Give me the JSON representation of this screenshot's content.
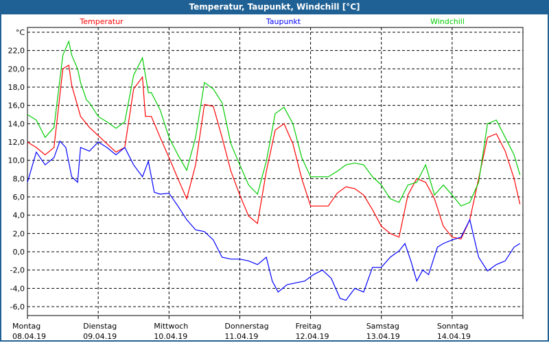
{
  "title": "Temperatur, Taupunkt, Windchill [°C]",
  "chart_data": {
    "type": "line",
    "title": "Temperatur, Taupunkt, Windchill [°C]",
    "ylabel": "°C",
    "xlabel": "",
    "x_unit": "hours since 08.04.19 00:00",
    "xlim": [
      0,
      168
    ],
    "ylim": [
      -7,
      24.5
    ],
    "grid": true,
    "legend_placement": "top",
    "yticks": [
      -6,
      -4,
      -2,
      0,
      2,
      4,
      6,
      8,
      10,
      12,
      14,
      16,
      18,
      20,
      22
    ],
    "ytick_labels": [
      "-6,0",
      "-4,0",
      "-2,0",
      "0,0",
      "2,0",
      "4,0",
      "6,0",
      "8,0",
      "10,0",
      "12,0",
      "14,0",
      "16,0",
      "18,0",
      "20,0",
      "22,0"
    ],
    "xticks": [
      {
        "h": 0,
        "day": "Montag",
        "date": "08.04.19"
      },
      {
        "h": 24,
        "day": "Dienstag",
        "date": "09.04.19"
      },
      {
        "h": 48,
        "day": "Mittwoch",
        "date": "10.04.19"
      },
      {
        "h": 72,
        "day": "Donnerstag",
        "date": "11.04.19"
      },
      {
        "h": 96,
        "day": "Freitag",
        "date": "12.04.19"
      },
      {
        "h": 120,
        "day": "Samstag",
        "date": "13.04.19"
      },
      {
        "h": 144,
        "day": "Sonntag",
        "date": "14.04.19"
      }
    ],
    "series": [
      {
        "name": "Temperatur",
        "color": "#ff0000",
        "points": [
          [
            0,
            12.0
          ],
          [
            3,
            11.4
          ],
          [
            6,
            10.6
          ],
          [
            9,
            11.4
          ],
          [
            12,
            20.0
          ],
          [
            14,
            20.4
          ],
          [
            15,
            18.2
          ],
          [
            18,
            14.8
          ],
          [
            21,
            13.6
          ],
          [
            24,
            12.7
          ],
          [
            27,
            11.8
          ],
          [
            30,
            10.9
          ],
          [
            33,
            11.4
          ],
          [
            36,
            17.8
          ],
          [
            39,
            19.1
          ],
          [
            40,
            14.8
          ],
          [
            42,
            14.8
          ],
          [
            45,
            12.5
          ],
          [
            48,
            10.3
          ],
          [
            51,
            8.0
          ],
          [
            54,
            5.8
          ],
          [
            57,
            9.5
          ],
          [
            60,
            16.1
          ],
          [
            63,
            15.9
          ],
          [
            66,
            12.5
          ],
          [
            69,
            8.8
          ],
          [
            72,
            6.2
          ],
          [
            75,
            3.9
          ],
          [
            78,
            3.1
          ],
          [
            81,
            8.8
          ],
          [
            84,
            13.3
          ],
          [
            87,
            14.0
          ],
          [
            90,
            11.8
          ],
          [
            93,
            8.0
          ],
          [
            96,
            5.0
          ],
          [
            99,
            5.0
          ],
          [
            102,
            5.0
          ],
          [
            105,
            6.4
          ],
          [
            108,
            7.1
          ],
          [
            111,
            6.9
          ],
          [
            114,
            6.2
          ],
          [
            117,
            4.6
          ],
          [
            120,
            2.8
          ],
          [
            123,
            2.0
          ],
          [
            126,
            1.6
          ],
          [
            129,
            6.2
          ],
          [
            132,
            8.0
          ],
          [
            135,
            7.6
          ],
          [
            138,
            5.8
          ],
          [
            141,
            2.8
          ],
          [
            144,
            1.6
          ],
          [
            147,
            1.4
          ],
          [
            150,
            3.5
          ],
          [
            153,
            8.0
          ],
          [
            156,
            12.5
          ],
          [
            159,
            12.9
          ],
          [
            162,
            11.0
          ],
          [
            165,
            8.0
          ],
          [
            167,
            5.2
          ]
        ]
      },
      {
        "name": "Taupunkt",
        "color": "#0000ff",
        "points": [
          [
            0,
            7.6
          ],
          [
            3,
            10.9
          ],
          [
            6,
            9.5
          ],
          [
            9,
            10.3
          ],
          [
            11,
            12.1
          ],
          [
            13,
            11.4
          ],
          [
            15,
            8.2
          ],
          [
            17,
            7.6
          ],
          [
            18,
            11.4
          ],
          [
            21,
            11.0
          ],
          [
            24,
            12.0
          ],
          [
            27,
            11.4
          ],
          [
            30,
            10.6
          ],
          [
            33,
            11.4
          ],
          [
            36,
            9.5
          ],
          [
            39,
            8.2
          ],
          [
            41,
            9.9
          ],
          [
            43,
            6.5
          ],
          [
            45,
            6.3
          ],
          [
            48,
            6.4
          ],
          [
            51,
            5.0
          ],
          [
            54,
            3.5
          ],
          [
            57,
            2.4
          ],
          [
            60,
            2.2
          ],
          [
            63,
            1.3
          ],
          [
            66,
            -0.6
          ],
          [
            69,
            -0.8
          ],
          [
            72,
            -0.8
          ],
          [
            75,
            -1.0
          ],
          [
            78,
            -1.4
          ],
          [
            81,
            -0.6
          ],
          [
            83,
            -3.2
          ],
          [
            85,
            -4.4
          ],
          [
            88,
            -3.6
          ],
          [
            91,
            -3.4
          ],
          [
            94,
            -3.2
          ],
          [
            97,
            -2.5
          ],
          [
            100,
            -2.0
          ],
          [
            103,
            -2.9
          ],
          [
            106,
            -5.1
          ],
          [
            108,
            -5.3
          ],
          [
            111,
            -4.0
          ],
          [
            114,
            -4.4
          ],
          [
            117,
            -1.7
          ],
          [
            120,
            -1.7
          ],
          [
            123,
            -0.6
          ],
          [
            126,
            0.1
          ],
          [
            128,
            0.9
          ],
          [
            130,
            -1.0
          ],
          [
            132,
            -3.2
          ],
          [
            134,
            -2.0
          ],
          [
            136,
            -2.5
          ],
          [
            139,
            0.5
          ],
          [
            141,
            0.9
          ],
          [
            144,
            1.3
          ],
          [
            147,
            1.6
          ],
          [
            150,
            3.5
          ],
          [
            153,
            -0.6
          ],
          [
            156,
            -2.1
          ],
          [
            159,
            -1.4
          ],
          [
            162,
            -1.0
          ],
          [
            165,
            0.5
          ],
          [
            167,
            0.9
          ]
        ]
      },
      {
        "name": "Windchill",
        "color": "#00cc00",
        "points": [
          [
            0,
            15.0
          ],
          [
            3,
            14.4
          ],
          [
            6,
            12.5
          ],
          [
            9,
            13.6
          ],
          [
            12,
            21.5
          ],
          [
            14,
            23.0
          ],
          [
            15,
            21.5
          ],
          [
            17,
            20.0
          ],
          [
            18,
            18.5
          ],
          [
            20,
            16.6
          ],
          [
            21,
            16.3
          ],
          [
            24,
            14.8
          ],
          [
            27,
            14.2
          ],
          [
            30,
            13.5
          ],
          [
            33,
            14.2
          ],
          [
            36,
            19.3
          ],
          [
            39,
            21.2
          ],
          [
            41,
            17.4
          ],
          [
            42,
            17.4
          ],
          [
            45,
            15.5
          ],
          [
            48,
            12.5
          ],
          [
            51,
            10.6
          ],
          [
            54,
            8.9
          ],
          [
            57,
            12.5
          ],
          [
            60,
            18.5
          ],
          [
            63,
            17.8
          ],
          [
            66,
            16.3
          ],
          [
            69,
            11.8
          ],
          [
            72,
            9.5
          ],
          [
            75,
            7.3
          ],
          [
            78,
            6.3
          ],
          [
            81,
            9.9
          ],
          [
            84,
            15.1
          ],
          [
            87,
            15.8
          ],
          [
            90,
            14.0
          ],
          [
            93,
            10.3
          ],
          [
            96,
            8.2
          ],
          [
            99,
            8.2
          ],
          [
            102,
            8.2
          ],
          [
            105,
            8.8
          ],
          [
            108,
            9.5
          ],
          [
            111,
            9.7
          ],
          [
            114,
            9.5
          ],
          [
            117,
            8.2
          ],
          [
            120,
            7.3
          ],
          [
            123,
            5.8
          ],
          [
            126,
            5.4
          ],
          [
            129,
            7.3
          ],
          [
            132,
            7.6
          ],
          [
            135,
            9.5
          ],
          [
            138,
            6.2
          ],
          [
            141,
            7.3
          ],
          [
            144,
            6.2
          ],
          [
            147,
            5.0
          ],
          [
            150,
            5.4
          ],
          [
            153,
            7.6
          ],
          [
            156,
            14.0
          ],
          [
            159,
            14.4
          ],
          [
            162,
            12.5
          ],
          [
            165,
            10.6
          ],
          [
            167,
            8.4
          ]
        ]
      }
    ]
  }
}
